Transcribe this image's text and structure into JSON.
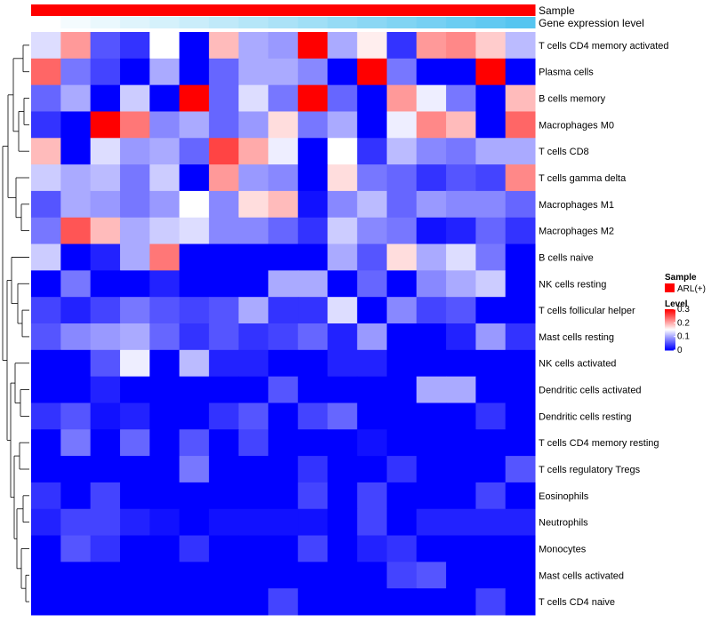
{
  "chart_data": {
    "type": "heatmap",
    "title": "",
    "annotation_tracks": [
      "Sample",
      "Gene expression level"
    ],
    "sample_group": "ARL(+)",
    "colors": {
      "low": "#0000ff",
      "mid": "#ffffff",
      "high": "#ff0000",
      "sample": "#ff0000",
      "expr_low": "#ffffff",
      "expr_high": "#4fc3ef"
    },
    "rows": [
      "T cells CD4 memory activated",
      "Plasma cells",
      "B cells memory",
      "Macrophages M0",
      "T cells CD8",
      "T cells gamma delta",
      "Macrophages M1",
      "Macrophages M2",
      "B cells naive",
      "NK cells resting",
      "T cells follicular helper",
      "Mast cells resting",
      "NK cells activated",
      "Dendritic cells activated",
      "Dendritic cells resting",
      "T cells CD4 memory resting",
      "T cells regulatory  Tregs",
      "Eosinophils",
      "Neutrophils",
      "Monocytes",
      "Mast cells activated",
      "T cells CD4 naive"
    ],
    "n_columns": 17,
    "values": [
      [
        0.13,
        0.21,
        0.05,
        0.03,
        0.15,
        0.0,
        0.19,
        0.1,
        0.09,
        0.3,
        0.1,
        0.16,
        0.03,
        0.21,
        0.22,
        0.18,
        0.11
      ],
      [
        0.24,
        0.07,
        0.04,
        0.0,
        0.1,
        0.0,
        0.06,
        0.1,
        0.1,
        0.08,
        0.0,
        0.3,
        0.07,
        0.0,
        0.0,
        0.3,
        0.0
      ],
      [
        0.06,
        0.1,
        0.0,
        0.12,
        0.0,
        0.3,
        0.06,
        0.13,
        0.07,
        0.3,
        0.06,
        0.0,
        0.21,
        0.14,
        0.07,
        0.0,
        0.19
      ],
      [
        0.03,
        0.0,
        0.3,
        0.23,
        0.08,
        0.1,
        0.06,
        0.09,
        0.17,
        0.07,
        0.1,
        0.0,
        0.14,
        0.22,
        0.19,
        0.0,
        0.24
      ],
      [
        0.19,
        0.0,
        0.13,
        0.09,
        0.1,
        0.06,
        0.26,
        0.2,
        0.14,
        0.0,
        0.15,
        0.03,
        0.11,
        0.08,
        0.07,
        0.1,
        0.1
      ],
      [
        0.12,
        0.1,
        0.11,
        0.07,
        0.12,
        0.0,
        0.21,
        0.09,
        0.08,
        0.0,
        0.17,
        0.07,
        0.06,
        0.03,
        0.05,
        0.04,
        0.22
      ],
      [
        0.05,
        0.1,
        0.09,
        0.07,
        0.09,
        0.15,
        0.08,
        0.17,
        0.19,
        0.01,
        0.08,
        0.11,
        0.06,
        0.09,
        0.08,
        0.08,
        0.06
      ],
      [
        0.07,
        0.25,
        0.19,
        0.1,
        0.12,
        0.13,
        0.08,
        0.08,
        0.06,
        0.03,
        0.12,
        0.08,
        0.07,
        0.01,
        0.02,
        0.06,
        0.03
      ],
      [
        0.12,
        0.0,
        0.02,
        0.1,
        0.23,
        0.0,
        0.0,
        0.0,
        0.0,
        0.0,
        0.1,
        0.05,
        0.17,
        0.1,
        0.13,
        0.07,
        0.0
      ],
      [
        0.0,
        0.07,
        0.0,
        0.0,
        0.02,
        0.0,
        0.0,
        0.0,
        0.1,
        0.1,
        0.0,
        0.06,
        0.0,
        0.08,
        0.1,
        0.12,
        0.0
      ],
      [
        0.04,
        0.02,
        0.04,
        0.07,
        0.05,
        0.04,
        0.05,
        0.1,
        0.03,
        0.03,
        0.13,
        0.0,
        0.08,
        0.04,
        0.05,
        0.0,
        0.0
      ],
      [
        0.05,
        0.08,
        0.09,
        0.1,
        0.06,
        0.03,
        0.05,
        0.03,
        0.04,
        0.06,
        0.02,
        0.09,
        0.0,
        0.0,
        0.02,
        0.09,
        0.03
      ],
      [
        0.0,
        0.0,
        0.05,
        0.14,
        0.0,
        0.11,
        0.02,
        0.02,
        0.0,
        0.0,
        0.02,
        0.02,
        0.0,
        0.0,
        0.0,
        0.0,
        0.0
      ],
      [
        0.0,
        0.0,
        0.02,
        0.0,
        0.0,
        0.0,
        0.0,
        0.0,
        0.05,
        0.0,
        0.0,
        0.0,
        0.0,
        0.1,
        0.1,
        0.0,
        0.0
      ],
      [
        0.03,
        0.05,
        0.01,
        0.02,
        0.0,
        0.0,
        0.03,
        0.05,
        0.0,
        0.04,
        0.06,
        0.0,
        0.0,
        0.0,
        0.0,
        0.03,
        0.0
      ],
      [
        0.0,
        0.07,
        0.0,
        0.06,
        0.0,
        0.05,
        0.0,
        0.04,
        0.0,
        0.0,
        0.0,
        0.01,
        0.0,
        0.0,
        0.0,
        0.0,
        0.0
      ],
      [
        0.0,
        0.0,
        0.0,
        0.0,
        0.0,
        0.07,
        0.0,
        0.0,
        0.0,
        0.03,
        0.0,
        0.0,
        0.03,
        0.0,
        0.0,
        0.0,
        0.05
      ],
      [
        0.03,
        0.0,
        0.04,
        0.0,
        0.0,
        0.0,
        0.0,
        0.0,
        0.0,
        0.04,
        0.0,
        0.04,
        0.0,
        0.0,
        0.0,
        0.04,
        0.0
      ],
      [
        0.02,
        0.04,
        0.04,
        0.02,
        0.01,
        0.0,
        0.01,
        0.01,
        0.01,
        0.01,
        0.0,
        0.04,
        0.0,
        0.02,
        0.02,
        0.02,
        0.02
      ],
      [
        0.0,
        0.05,
        0.03,
        0.0,
        0.0,
        0.03,
        0.0,
        0.0,
        0.0,
        0.04,
        0.0,
        0.02,
        0.03,
        0.0,
        0.0,
        0.0,
        0.0
      ],
      [
        0.0,
        0.0,
        0.0,
        0.0,
        0.0,
        0.0,
        0.0,
        0.0,
        0.0,
        0.0,
        0.0,
        0.0,
        0.04,
        0.05,
        0.0,
        0.0,
        0.0
      ],
      [
        0.0,
        0.0,
        0.0,
        0.0,
        0.0,
        0.0,
        0.0,
        0.0,
        0.04,
        0.0,
        0.0,
        0.0,
        0.0,
        0.0,
        0.0,
        0.04,
        0.0
      ]
    ],
    "gene_expression_level": [
      0.0,
      0.06,
      0.12,
      0.18,
      0.24,
      0.3,
      0.36,
      0.42,
      0.48,
      0.54,
      0.6,
      0.66,
      0.72,
      0.78,
      0.84,
      0.9,
      0.96
    ],
    "legend": {
      "sample_title": "Sample",
      "sample_label": "ARL(+)",
      "level_title": "Level",
      "level_ticks": [
        "0.3",
        "0.2",
        "0.1",
        "0"
      ],
      "level_range": [
        0,
        0.3
      ],
      "placement": "right"
    },
    "row_dendrogram": true
  }
}
